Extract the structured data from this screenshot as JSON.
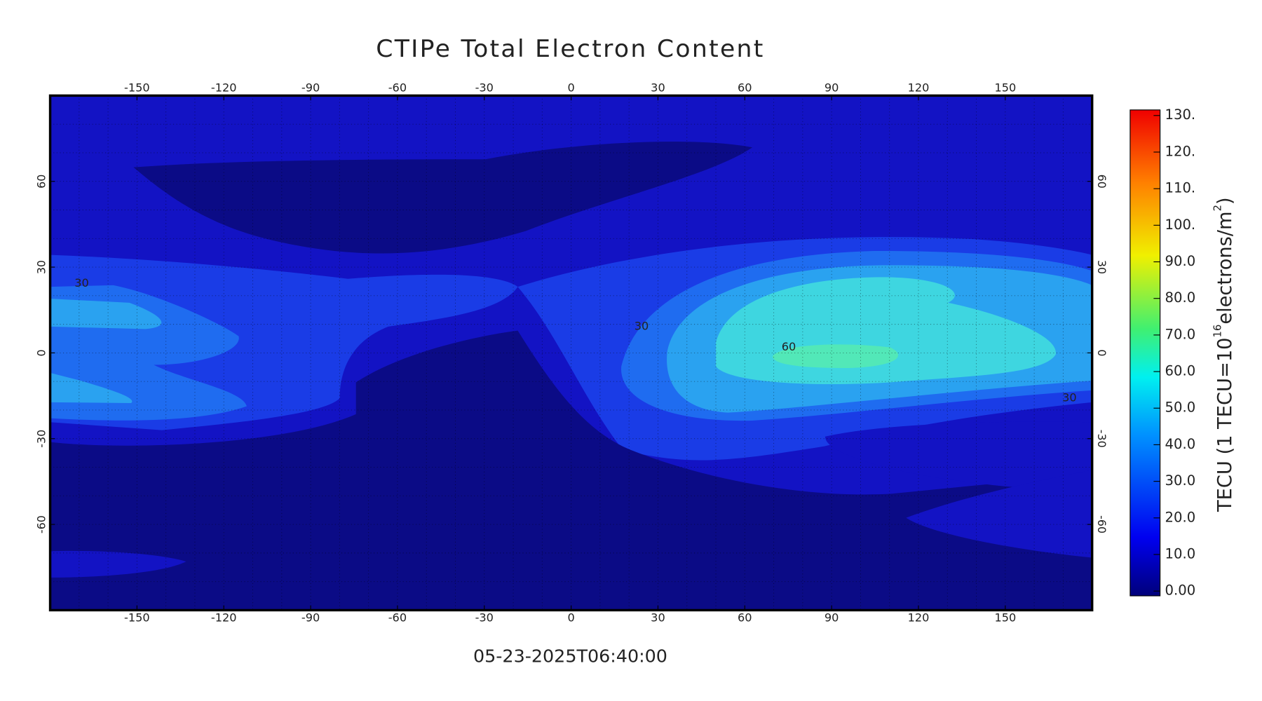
{
  "title": "CTIPe Total Electron Content",
  "timestamp": "05-23-2025T06:40:00",
  "map": {
    "xlim": [
      -180,
      180
    ],
    "ylim": [
      -90,
      90
    ],
    "xticks": [
      -150,
      -120,
      -90,
      -60,
      -30,
      0,
      30,
      60,
      90,
      120,
      150
    ],
    "yticks": [
      -60,
      -30,
      0,
      30,
      60
    ],
    "grid": true
  },
  "colorbar": {
    "label": [
      "TECU (1 TECU=10",
      "16",
      "electrons/m",
      "2",
      ")"
    ],
    "lim": [
      0,
      130
    ],
    "ticks": [
      {
        "value": 0,
        "label": "0.00"
      },
      {
        "value": 10,
        "label": "10.0"
      },
      {
        "value": 20,
        "label": "20.0"
      },
      {
        "value": 30,
        "label": "30.0"
      },
      {
        "value": 40,
        "label": "40.0"
      },
      {
        "value": 50,
        "label": "50.0"
      },
      {
        "value": 60,
        "label": "60.0"
      },
      {
        "value": 70,
        "label": "70.0"
      },
      {
        "value": 80,
        "label": "80.0"
      },
      {
        "value": 90,
        "label": "90.0"
      },
      {
        "value": 100,
        "label": "100."
      },
      {
        "value": 110,
        "label": "110."
      },
      {
        "value": 120,
        "label": "120."
      },
      {
        "value": 130,
        "label": "130."
      }
    ]
  },
  "contour_labels": [
    30,
    30,
    30,
    60
  ]
}
